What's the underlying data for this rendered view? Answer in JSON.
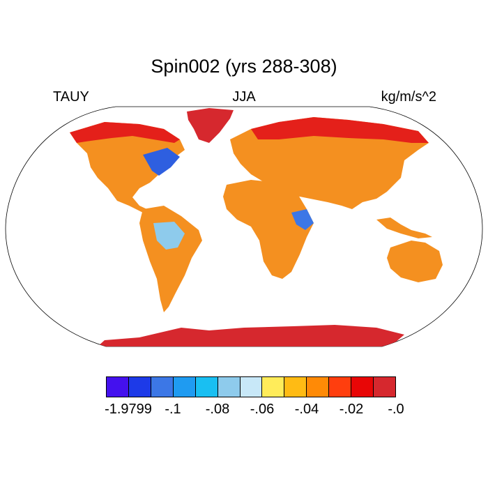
{
  "title": "Spin002 (yrs 288-308)",
  "left_label": "TAUY",
  "center_label": "JJA",
  "units_label": "kg/m/s^2",
  "colorbar": {
    "colors": [
      "#4411ee",
      "#1d3ae8",
      "#3c77e6",
      "#1f9bf1",
      "#19bff2",
      "#8ecbec",
      "#c8e8f8",
      "#ffec5a",
      "#ffbb14",
      "#ff8a06",
      "#ff3e0e",
      "#e80606",
      "#d6282e"
    ],
    "tick_labels": [
      "-1.9799",
      "-.1",
      "-.08",
      "-.06",
      "-.04",
      "-.02",
      "-.0"
    ],
    "tick_boundaries": [
      1,
      3,
      5,
      7,
      9,
      11,
      13
    ]
  },
  "map": {
    "projection": "Robinson",
    "land_fill": "#f08a18",
    "antarctic_fill": "#d6282e",
    "ocean_fill": "#ffffff"
  }
}
